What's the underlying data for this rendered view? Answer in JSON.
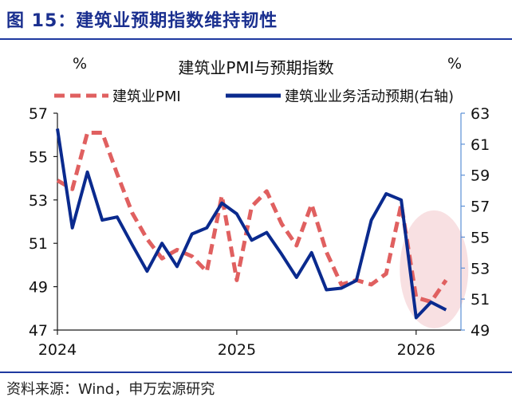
{
  "figure": {
    "title": "图 15：建筑业预期指数维持韧性",
    "source": "资料来源：Wind，申万宏源研究"
  },
  "colors": {
    "pmi": "#e06060",
    "expect": "#0a2a8e",
    "right_axis": "#5b8fd6",
    "highlight": "#f6d6d8",
    "title_blue": "#1a2f8f"
  },
  "chart_data": {
    "type": "line",
    "title": "建筑业PMI与预期指数",
    "left_unit": "%",
    "right_unit": "%",
    "x_ticks": [
      "2024",
      "2025",
      "2026"
    ],
    "y_left": {
      "lim": [
        47,
        57
      ],
      "ticks": [
        "47",
        "49",
        "51",
        "53",
        "55",
        "57"
      ]
    },
    "y_right": {
      "lim": [
        49,
        63
      ],
      "ticks": [
        "49",
        "51",
        "53",
        "55",
        "57",
        "59",
        "61",
        "63"
      ]
    },
    "x_range": [
      2024.0,
      2026.25
    ],
    "grid": false,
    "legend": "top",
    "highlight": "2025-12 to 2026-03",
    "series": [
      {
        "name": "建筑业PMI",
        "axis": "left",
        "style": "dashed",
        "x": [
          2024.0,
          2024.083,
          2024.167,
          2024.25,
          2024.333,
          2024.417,
          2024.5,
          2024.583,
          2024.667,
          2024.75,
          2024.833,
          2024.917,
          2025.0,
          2025.083,
          2025.167,
          2025.25,
          2025.333,
          2025.417,
          2025.5,
          2025.583,
          2025.667,
          2025.75,
          2025.833,
          2025.917,
          2026.0,
          2026.083,
          2026.167
        ],
        "values": [
          53.9,
          53.5,
          56.1,
          56.1,
          54.2,
          52.4,
          51.2,
          50.3,
          50.7,
          50.4,
          49.7,
          53.2,
          49.3,
          52.7,
          53.4,
          51.9,
          50.9,
          52.8,
          50.6,
          49.1,
          49.3,
          49.1,
          49.6,
          52.8,
          48.5,
          48.3,
          49.3
        ]
      },
      {
        "name": "建筑业业务活动预期(右轴)",
        "axis": "right",
        "style": "solid",
        "x": [
          2024.0,
          2024.083,
          2024.167,
          2024.25,
          2024.333,
          2024.417,
          2024.5,
          2024.583,
          2024.667,
          2024.75,
          2024.833,
          2024.917,
          2025.0,
          2025.083,
          2025.167,
          2025.25,
          2025.333,
          2025.417,
          2025.5,
          2025.583,
          2025.667,
          2025.75,
          2025.833,
          2025.917,
          2026.0,
          2026.083,
          2026.167
        ],
        "values": [
          62.0,
          55.6,
          59.2,
          56.1,
          56.3,
          54.5,
          52.8,
          54.6,
          53.1,
          55.2,
          55.6,
          57.2,
          56.5,
          54.8,
          55.3,
          53.9,
          52.4,
          54.0,
          51.6,
          51.7,
          52.2,
          56.1,
          57.8,
          57.4,
          49.8,
          50.8,
          50.3
        ]
      }
    ]
  }
}
